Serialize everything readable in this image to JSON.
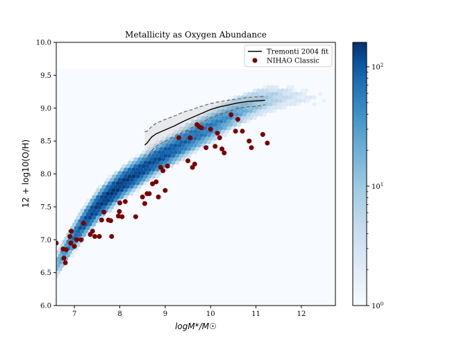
{
  "chart_data": {
    "type": "scatter",
    "title": "Metallicity as Oxygen Abundance",
    "xlabel": "logM*/M☉",
    "ylabel": "12 + log10(O/H)",
    "xlim": [
      6.6,
      12.75
    ],
    "ylim": [
      6.0,
      10.0
    ],
    "xticks": [
      7,
      8,
      9,
      10,
      11,
      12
    ],
    "yticks": [
      6.0,
      6.5,
      7.0,
      7.5,
      8.0,
      8.5,
      9.0,
      9.5,
      10.0
    ],
    "grid": false,
    "legend_position": "top-right",
    "legend": [
      {
        "label": "Tremonti 2004 fit",
        "marker": "line",
        "color": "#000000"
      },
      {
        "label": "NIHAO Classic",
        "marker": "circle",
        "color": "#7a0000"
      }
    ],
    "colorbar": {
      "scale": "log",
      "range": [
        1,
        160
      ],
      "ticks": [
        "10^0",
        "10^1",
        "10^2"
      ],
      "colormap": "Blues"
    },
    "hexbin_background": {
      "x_range": [
        6.6,
        12.75
      ],
      "y_range": [
        6.0,
        9.6
      ],
      "color": "#f7fbff"
    },
    "hexbin_density_ridge": {
      "description": "counts along the mass-metallicity relation",
      "x": [
        6.6,
        6.9,
        7.2,
        7.5,
        7.8,
        8.1,
        8.4,
        8.7,
        9.0,
        9.3,
        9.6,
        9.9,
        10.2,
        10.5,
        10.8,
        11.1,
        11.4,
        11.7,
        12.0,
        12.3,
        12.6
      ],
      "y": [
        6.6,
        6.95,
        7.25,
        7.5,
        7.7,
        7.88,
        8.02,
        8.17,
        8.3,
        8.43,
        8.56,
        8.68,
        8.8,
        8.92,
        9.02,
        9.1,
        9.15,
        9.18,
        9.16,
        9.15,
        9.14
      ],
      "peak_counts": [
        10,
        40,
        80,
        120,
        140,
        130,
        110,
        90,
        80,
        60,
        50,
        40,
        30,
        20,
        12,
        8,
        5,
        3,
        2,
        1.5,
        1
      ]
    },
    "series": [
      {
        "name": "Tremonti 2004 fit",
        "type": "line",
        "x": [
          8.55,
          8.6,
          8.7,
          8.8,
          9.0,
          9.2,
          9.4,
          9.6,
          9.8,
          10.0,
          10.2,
          10.4,
          10.6,
          10.8,
          11.0,
          11.2
        ],
        "y": [
          8.44,
          8.47,
          8.56,
          8.61,
          8.67,
          8.73,
          8.8,
          8.86,
          8.92,
          8.98,
          9.02,
          9.05,
          9.08,
          9.1,
          9.11,
          9.12
        ],
        "upper": [
          8.64,
          8.65,
          8.72,
          8.77,
          8.83,
          8.88,
          8.94,
          8.98,
          9.03,
          9.07,
          9.1,
          9.12,
          9.14,
          9.16,
          9.17,
          9.18
        ],
        "lower": [
          8.22,
          8.25,
          8.35,
          8.42,
          8.5,
          8.57,
          8.64,
          8.71,
          8.78,
          8.85,
          8.91,
          8.95,
          9.0,
          9.02,
          9.03,
          9.05
        ]
      },
      {
        "name": "NIHAO Classic",
        "type": "scatter",
        "x": [
          6.6,
          6.75,
          6.77,
          6.8,
          6.82,
          6.9,
          6.92,
          6.93,
          7.0,
          7.05,
          7.15,
          7.2,
          7.35,
          7.4,
          7.45,
          7.55,
          7.6,
          7.65,
          7.75,
          7.8,
          7.82,
          7.97,
          7.99,
          8.0,
          8.05,
          8.12,
          8.35,
          8.5,
          8.55,
          8.6,
          8.65,
          8.72,
          8.8,
          8.85,
          8.9,
          8.95,
          9.0,
          9.05,
          9.3,
          9.5,
          9.55,
          9.6,
          9.65,
          9.7,
          9.75,
          9.8,
          9.9,
          10.0,
          10.1,
          10.15,
          10.2,
          10.25,
          10.3,
          10.45,
          10.55,
          10.6,
          10.7,
          10.85,
          10.9,
          11.15,
          11.25
        ],
        "y": [
          6.95,
          6.86,
          6.72,
          6.65,
          6.85,
          7.05,
          6.95,
          7.13,
          6.9,
          7.0,
          7.0,
          7.25,
          7.08,
          7.13,
          7.05,
          7.05,
          7.3,
          7.42,
          7.3,
          7.29,
          7.05,
          7.36,
          7.43,
          7.56,
          7.35,
          7.58,
          7.35,
          7.65,
          7.55,
          7.7,
          7.7,
          7.85,
          7.88,
          7.65,
          8.1,
          8.05,
          7.75,
          8.12,
          8.55,
          8.2,
          8.55,
          8.1,
          8.15,
          8.75,
          8.72,
          8.7,
          8.4,
          8.68,
          8.42,
          8.62,
          8.55,
          8.38,
          8.32,
          8.9,
          8.65,
          8.83,
          8.65,
          8.5,
          8.4,
          8.6,
          8.47
        ]
      }
    ]
  }
}
